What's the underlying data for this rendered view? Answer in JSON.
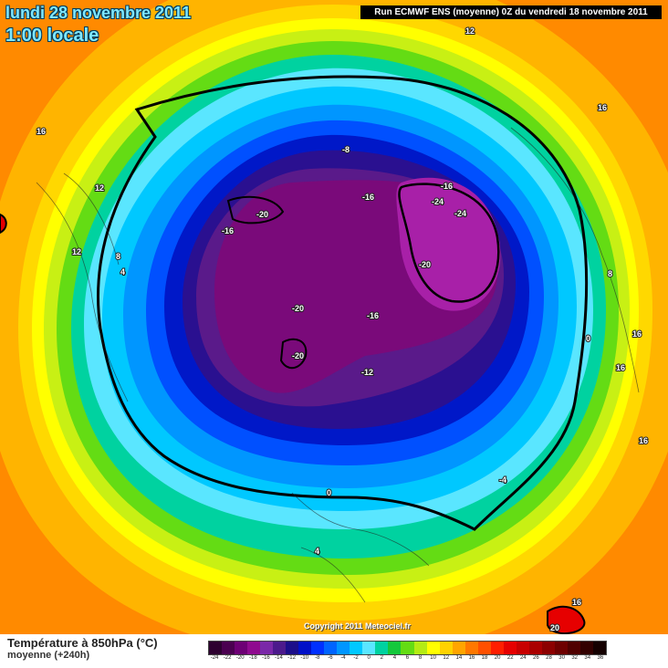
{
  "header": {
    "date": "lundi 28 novembre 2011",
    "time": "1:00 locale",
    "run": "Run ECMWF ENS (moyenne) 0Z du vendredi 18 novembre 2011"
  },
  "copyright": "Copyright 2011 Meteociel.fr",
  "footer": {
    "title": "Température à 850hPa (°C)",
    "subtitle": "moyenne   (+240h)"
  },
  "legend": {
    "ticks": [
      "-24",
      "-22",
      "-20",
      "-18",
      "-16",
      "-14",
      "-12",
      "-10",
      "-8",
      "-6",
      "-4",
      "-2",
      "0",
      "2",
      "4",
      "6",
      "8",
      "10",
      "12",
      "14",
      "16",
      "18",
      "20",
      "22",
      "24",
      "26",
      "28",
      "30",
      "32",
      "34",
      "36"
    ],
    "colors": [
      "#2d0030",
      "#4a0050",
      "#6d0075",
      "#8f0a8f",
      "#7a28a8",
      "#4c1a8c",
      "#1c0e8a",
      "#0010c8",
      "#0030ff",
      "#0064ff",
      "#0096ff",
      "#00c8ff",
      "#5ae6ff",
      "#00d2a0",
      "#14c83c",
      "#64dc14",
      "#b4eb14",
      "#ffff00",
      "#ffd200",
      "#ffa500",
      "#ff7800",
      "#ff5000",
      "#ff1e00",
      "#e60000",
      "#c80000",
      "#aa0000",
      "#8c0000",
      "#6e0000",
      "#500000",
      "#320000",
      "#140000"
    ]
  },
  "map_labels": [
    "12",
    "16",
    "12",
    "4",
    "8",
    "12",
    "-8",
    "-16",
    "-16",
    "-24",
    "-24",
    "-20",
    "-16",
    "-20",
    "-20",
    "-20",
    "-16",
    "-12",
    "-20",
    "-4",
    "0",
    "4",
    "8",
    "16",
    "0",
    "16",
    "16",
    "16",
    "20",
    "12"
  ]
}
